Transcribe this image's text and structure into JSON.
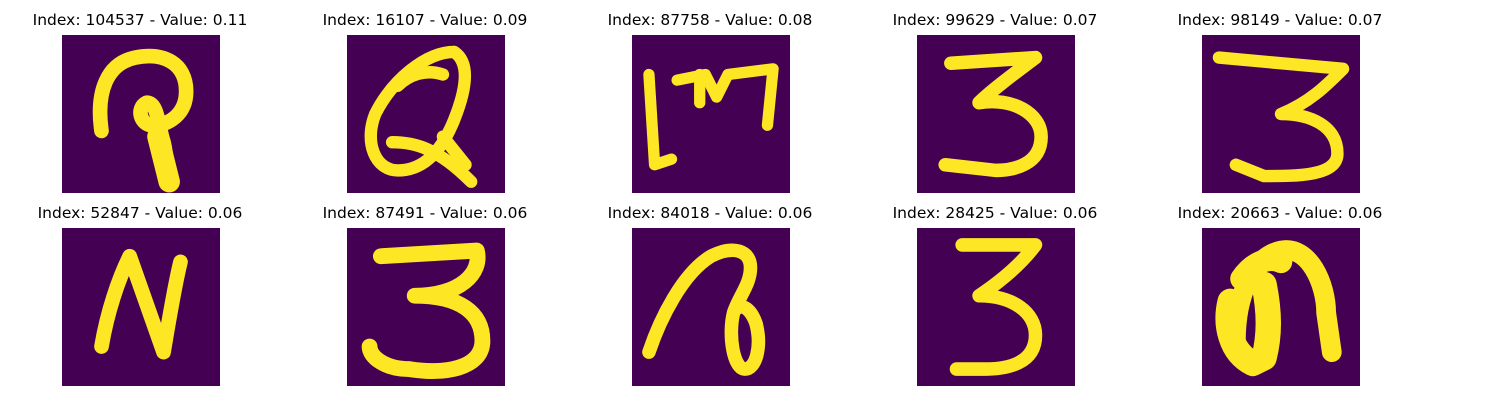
{
  "colors": {
    "background": "#440154",
    "low": "#31688e",
    "mid": "#21918c",
    "high": "#fde725"
  },
  "panels": [
    {
      "title": "Index: 104537 - Value: 0.11",
      "glyph": "hook"
    },
    {
      "title": "Index: 16107 - Value: 0.09",
      "glyph": "loop-a"
    },
    {
      "title": "Index: 87758 - Value: 0.08",
      "glyph": "m-shape"
    },
    {
      "title": "Index: 99629 - Value: 0.07",
      "glyph": "three"
    },
    {
      "title": "Index: 98149 - Value: 0.07",
      "glyph": "three"
    },
    {
      "title": "Index: 52847 - Value: 0.06",
      "glyph": "n-shape"
    },
    {
      "title": "Index: 87491 - Value: 0.06",
      "glyph": "three"
    },
    {
      "title": "Index: 84018 - Value: 0.06",
      "glyph": "loop-b"
    },
    {
      "title": "Index: 28425 - Value: 0.06",
      "glyph": "three"
    },
    {
      "title": "Index: 20663 - Value: 0.06",
      "glyph": "arch"
    }
  ]
}
